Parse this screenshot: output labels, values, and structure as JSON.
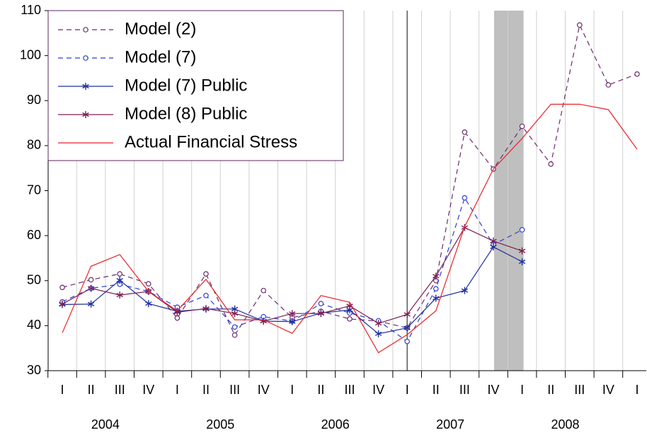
{
  "chart_data": {
    "type": "line",
    "categories": [
      "I",
      "II",
      "III",
      "IV",
      "I",
      "II",
      "III",
      "IV",
      "I",
      "II",
      "III",
      "IV",
      "I",
      "II",
      "III",
      "IV",
      "I",
      "II",
      "III",
      "IV",
      "I"
    ],
    "years": [
      "2004",
      "2005",
      "2006",
      "2007",
      "2008"
    ],
    "ylim": [
      30,
      110
    ],
    "yticks": [
      30,
      40,
      50,
      60,
      70,
      80,
      90,
      100,
      110
    ],
    "grid": true,
    "legend": "top-left",
    "series": [
      {
        "name": "Model (2)",
        "color": "#6b2a6b",
        "dash": true,
        "marker": "circle",
        "values": [
          48.5,
          50.2,
          51.5,
          49.3,
          41.7,
          51.5,
          37.9,
          47.8,
          41.8,
          43.2,
          41.5,
          41.0,
          39.5,
          50.0,
          83.0,
          74.8,
          84.3,
          75.9,
          106.8,
          93.5,
          95.9
        ]
      },
      {
        "name": "Model (7)",
        "color": "#2a3fd4",
        "dash": true,
        "marker": "circle",
        "values": [
          45.3,
          48.3,
          49.2,
          47.6,
          44.1,
          46.7,
          39.7,
          42.0,
          41.0,
          44.9,
          42.8,
          41.1,
          36.5,
          48.2,
          68.4,
          58.0,
          61.3,
          null,
          null,
          null,
          null
        ]
      },
      {
        "name": "Model (7) Public",
        "color": "#1f2e9e",
        "dash": false,
        "marker": "star",
        "values": [
          44.7,
          44.8,
          50.1,
          44.9,
          43.2,
          43.7,
          43.7,
          41.0,
          40.9,
          42.8,
          43.5,
          38.2,
          39.5,
          46.1,
          47.8,
          57.5,
          54.2,
          null,
          null,
          null,
          null
        ]
      },
      {
        "name": "Model (8) Public",
        "color": "#7d1f52",
        "dash": false,
        "marker": "star",
        "values": [
          44.8,
          48.3,
          46.8,
          47.6,
          43.0,
          43.8,
          42.7,
          41.0,
          42.7,
          42.7,
          44.4,
          40.5,
          42.5,
          51.0,
          61.8,
          58.8,
          56.6,
          null,
          null,
          null,
          null
        ]
      },
      {
        "name": "Actual Financial Stress",
        "color": "#e8232a",
        "dash": false,
        "marker": "none",
        "values": [
          38.4,
          53.2,
          55.8,
          47.6,
          43.3,
          50.3,
          41.3,
          41.3,
          38.3,
          46.7,
          45.2,
          34.0,
          38.0,
          43.3,
          62.0,
          74.8,
          81.6,
          89.2,
          89.2,
          88.0,
          79.2
        ]
      }
    ]
  }
}
